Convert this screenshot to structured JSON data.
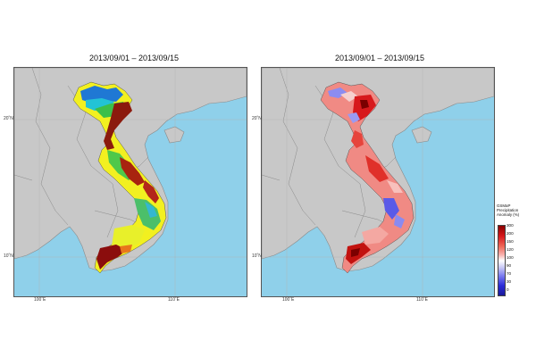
{
  "maps": [
    {
      "title": "2013/09/01 – 2013/09/15",
      "lat_labels": [
        "20˚N",
        "10˚N"
      ],
      "lon_labels": [
        "100˚E",
        "110˚E"
      ]
    },
    {
      "title": "2013/09/01 – 2013/09/15",
      "lat_labels": [
        "20˚N",
        "10˚N"
      ],
      "lon_labels": [
        "100˚E",
        "110˚E"
      ]
    }
  ],
  "legend": {
    "title_lines": [
      "GSMaP",
      "Precipitation",
      "Anomaly (%)"
    ],
    "ticks": [
      "300",
      "200",
      "150",
      "120",
      "100",
      "90",
      "70",
      "30",
      "0"
    ]
  },
  "colors": {
    "ocean": "#8fd0ea",
    "land": "#c8c8c8",
    "border": "#8a8a8a",
    "anomaly_scale": [
      "#8b0000",
      "#d7191c",
      "#f06a5a",
      "#f8b4b0",
      "#ffffff",
      "#c9c9f5",
      "#7b7bf0",
      "#2b2bd9",
      "#1a1a99"
    ]
  }
}
